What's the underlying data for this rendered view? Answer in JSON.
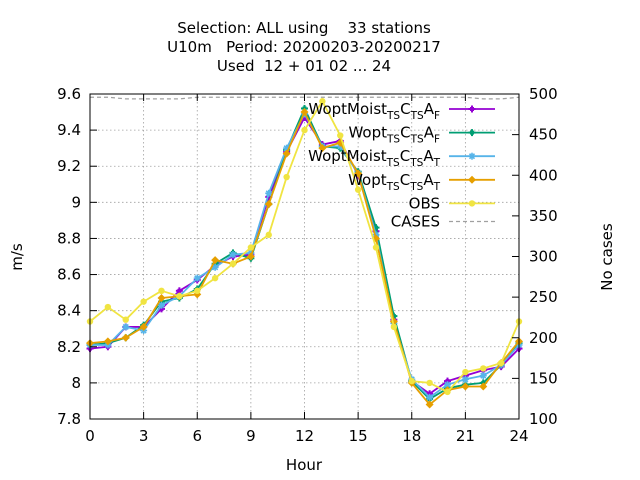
{
  "chart_data": {
    "type": "line",
    "title": {
      "line1": "Selection: ALL using    33 stations",
      "line2": "U10m   Period: 20200203-20200217",
      "line3": "Used  12 + 01 02 ... 24"
    },
    "xlabel": "Hour",
    "ylabel": "m/s",
    "y2label": "No cases",
    "xlim": [
      0,
      24
    ],
    "ylim": [
      7.8,
      9.6
    ],
    "y2lim": [
      100,
      500
    ],
    "grid": true,
    "legend_position": "top-right",
    "xticks": [
      "0",
      "3",
      "6",
      "9",
      "12",
      "15",
      "18",
      "21",
      "24"
    ],
    "yticks": [
      "7.8",
      "8",
      "8.2",
      "8.4",
      "8.6",
      "8.8",
      "9",
      "9.2",
      "9.4",
      "9.6"
    ],
    "y2ticks": [
      "100",
      "150",
      "200",
      "250",
      "300",
      "350",
      "400",
      "450",
      "500"
    ],
    "x": [
      0,
      1,
      2,
      3,
      4,
      5,
      6,
      7,
      8,
      9,
      10,
      11,
      12,
      13,
      14,
      15,
      16,
      17,
      18,
      19,
      20,
      21,
      22,
      23,
      24
    ],
    "series": [
      {
        "legend": {
          "main": "WoptMoist",
          "s1": "TS",
          "m2": "C",
          "s2": "TS",
          "m3": "A",
          "s3": "F"
        },
        "color": "#9400d3",
        "marker": "plus",
        "values": [
          8.19,
          8.2,
          8.31,
          8.31,
          8.41,
          8.51,
          8.57,
          8.65,
          8.7,
          8.71,
          9.03,
          9.28,
          9.47,
          9.32,
          9.34,
          9.15,
          8.84,
          8.35,
          8.01,
          7.94,
          8.01,
          8.04,
          8.07,
          8.09,
          8.19
        ]
      },
      {
        "legend": {
          "main": "Wopt",
          "s1": "TS",
          "m2": "C",
          "s2": "TS",
          "m3": "A",
          "s3": "F"
        },
        "color": "#009e73",
        "marker": "plus",
        "values": [
          8.21,
          8.22,
          8.25,
          8.32,
          8.45,
          8.47,
          8.52,
          8.66,
          8.72,
          8.69,
          8.99,
          9.29,
          9.52,
          9.31,
          9.3,
          9.17,
          8.86,
          8.37,
          8.01,
          7.91,
          7.97,
          7.99,
          8.0,
          8.1,
          8.22
        ]
      },
      {
        "legend": {
          "main": "WoptMoist",
          "s1": "TS",
          "m2": "C",
          "s2": "TS",
          "m3": "A",
          "s3": "T"
        },
        "color": "#56b4e9",
        "marker": "star",
        "values": [
          8.21,
          8.21,
          8.31,
          8.29,
          8.43,
          8.48,
          8.58,
          8.64,
          8.71,
          8.72,
          9.05,
          9.3,
          9.49,
          9.31,
          9.31,
          9.16,
          8.82,
          8.33,
          8.02,
          7.92,
          7.99,
          8.02,
          8.04,
          8.1,
          8.21
        ]
      },
      {
        "legend": {
          "main": "Wopt",
          "s1": "TS",
          "m2": "C",
          "s2": "TS",
          "m3": "A",
          "s3": "T"
        },
        "color": "#e69f00",
        "marker": "diamond",
        "values": [
          8.22,
          8.23,
          8.25,
          8.31,
          8.47,
          8.48,
          8.49,
          8.68,
          8.66,
          8.7,
          8.99,
          9.27,
          9.5,
          9.3,
          9.33,
          9.16,
          8.8,
          8.34,
          8.0,
          7.88,
          7.96,
          7.98,
          7.98,
          8.11,
          8.23
        ]
      },
      {
        "legend": {
          "main": "OBS"
        },
        "color": "#f0e442",
        "marker": "circle",
        "values": [
          8.34,
          8.42,
          8.35,
          8.45,
          8.51,
          8.48,
          8.51,
          8.58,
          8.66,
          8.75,
          8.82,
          9.14,
          9.4,
          9.56,
          9.37,
          9.07,
          8.75,
          8.31,
          8.01,
          8.0,
          7.95,
          8.06,
          8.08,
          8.11,
          8.34
        ]
      }
    ],
    "cases": {
      "legend": "CASES",
      "color": "#a0a0a0",
      "values": [
        496,
        496,
        494,
        494,
        494,
        494,
        496,
        496,
        496,
        496,
        496,
        496,
        496,
        496,
        496,
        496,
        496,
        496,
        496,
        496,
        496,
        496,
        494,
        494,
        496
      ]
    }
  }
}
